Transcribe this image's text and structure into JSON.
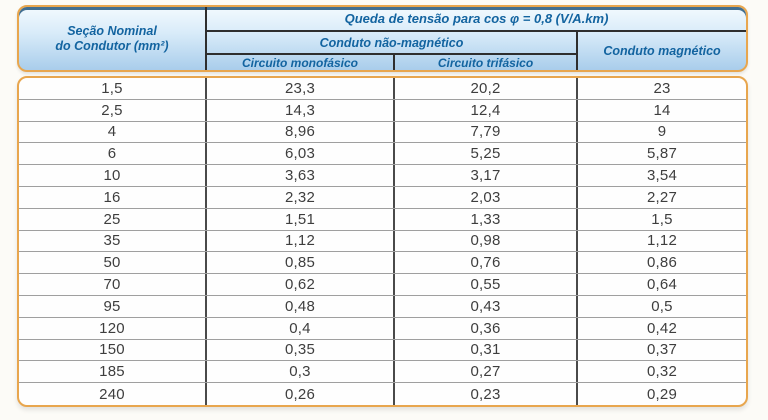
{
  "colors": {
    "panel_border": "#E8A64E",
    "header_text": "#1364A0",
    "header_gradient_top": "#F3FAFE",
    "header_gradient_bottom": "#A9CDEB",
    "header_inner_top_line": "#164C76",
    "body_text": "#3E3E3E",
    "row_line": "#9F9F9F",
    "column_line": "#4A4A4A",
    "page_background": "#FCFBF7"
  },
  "table": {
    "header": {
      "conductor_line1": "Seção Nominal",
      "conductor_line2": "do Condutor (mm²)",
      "title": "Queda de tensão para cos φ = 0,8 (V/A.km)",
      "group_nonmagnetic": "Conduto não-magnético",
      "group_magnetic": "Conduto magnético",
      "sub_single_phase": "Circuito monofásico",
      "sub_three_phase": "Circuito trifásico"
    },
    "rows": [
      [
        "1,5",
        "23,3",
        "20,2",
        "23"
      ],
      [
        "2,5",
        "14,3",
        "12,4",
        "14"
      ],
      [
        "4",
        "8,96",
        "7,79",
        "9"
      ],
      [
        "6",
        "6,03",
        "5,25",
        "5,87"
      ],
      [
        "10",
        "3,63",
        "3,17",
        "3,54"
      ],
      [
        "16",
        "2,32",
        "2,03",
        "2,27"
      ],
      [
        "25",
        "1,51",
        "1,33",
        "1,5"
      ],
      [
        "35",
        "1,12",
        "0,98",
        "1,12"
      ],
      [
        "50",
        "0,85",
        "0,76",
        "0,86"
      ],
      [
        "70",
        "0,62",
        "0,55",
        "0,64"
      ],
      [
        "95",
        "0,48",
        "0,43",
        "0,5"
      ],
      [
        "120",
        "0,4",
        "0,36",
        "0,42"
      ],
      [
        "150",
        "0,35",
        "0,31",
        "0,37"
      ],
      [
        "185",
        "0,3",
        "0,27",
        "0,32"
      ],
      [
        "240",
        "0,26",
        "0,23",
        "0,29"
      ]
    ]
  },
  "chart_data": {
    "type": "table",
    "title": "Queda de tensão para cos φ = 0,8 (V/A.km)",
    "columns": [
      "Seção Nominal do Condutor (mm²)",
      "Conduto não-magnético — Circuito monofásico",
      "Conduto não-magnético — Circuito trifásico",
      "Conduto magnético"
    ],
    "rows_numeric": [
      [
        1.5,
        23.3,
        20.2,
        23
      ],
      [
        2.5,
        14.3,
        12.4,
        14
      ],
      [
        4,
        8.96,
        7.79,
        9
      ],
      [
        6,
        6.03,
        5.25,
        5.87
      ],
      [
        10,
        3.63,
        3.17,
        3.54
      ],
      [
        16,
        2.32,
        2.03,
        2.27
      ],
      [
        25,
        1.51,
        1.33,
        1.5
      ],
      [
        35,
        1.12,
        0.98,
        1.12
      ],
      [
        50,
        0.85,
        0.76,
        0.86
      ],
      [
        70,
        0.62,
        0.55,
        0.64
      ],
      [
        95,
        0.48,
        0.43,
        0.5
      ],
      [
        120,
        0.4,
        0.36,
        0.42
      ],
      [
        150,
        0.35,
        0.31,
        0.37
      ],
      [
        185,
        0.3,
        0.27,
        0.32
      ],
      [
        240,
        0.26,
        0.23,
        0.29
      ]
    ]
  }
}
